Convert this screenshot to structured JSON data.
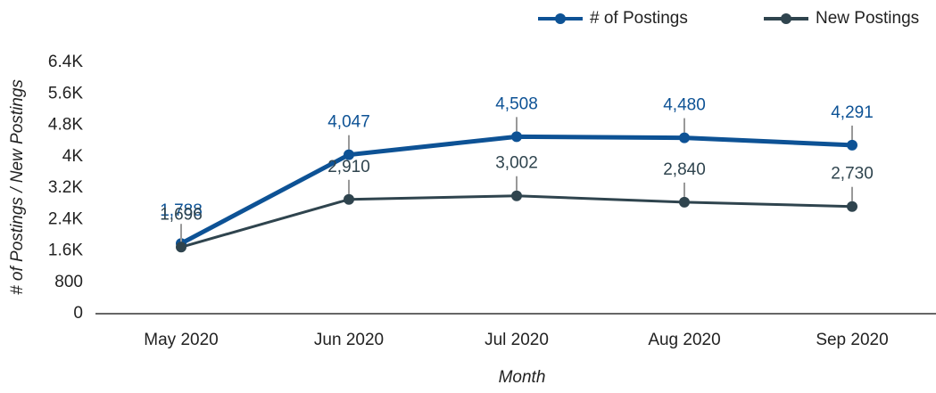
{
  "chart_data": {
    "type": "line",
    "x_label": "Month",
    "y_label": "# of Postings / New Postings",
    "categories": [
      "May 2020",
      "Jun 2020",
      "Jul 2020",
      "Aug 2020",
      "Sep 2020"
    ],
    "series": [
      {
        "name": "# of Postings",
        "color": "#0d5295",
        "values": [
          1788,
          4047,
          4508,
          4480,
          4291
        ],
        "value_labels": [
          "1,788",
          "4,047",
          "4,508",
          "4,480",
          "4,291"
        ]
      },
      {
        "name": "New Postings",
        "color": "#2f444e",
        "values": [
          1696,
          2910,
          3002,
          2840,
          2730
        ],
        "value_labels": [
          "1,696",
          "2,910",
          "3,002",
          "2,840",
          "2,730"
        ]
      }
    ],
    "ylim": [
      0,
      6400
    ],
    "yticks": [
      0,
      800,
      {
        "value": 1600,
        "label": "1.6K"
      },
      {
        "value": 2400,
        "label": "2.4K"
      },
      {
        "value": 3200,
        "label": "3.2K"
      },
      {
        "value": 4000,
        "label": "4K"
      },
      {
        "value": 4800,
        "label": "4.8K"
      },
      {
        "value": 5600,
        "label": "5.6K"
      },
      {
        "value": 6400,
        "label": "6.4K"
      }
    ]
  }
}
